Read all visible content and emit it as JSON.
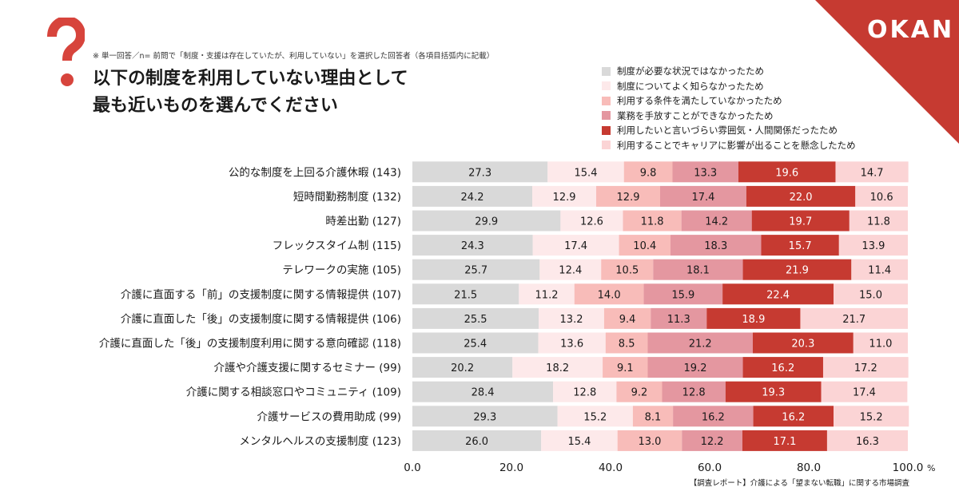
{
  "brand": {
    "logo": "OKAN",
    "corner_color": "#c63a31"
  },
  "survey_note": "※ 単一回答／n= 前問で「制度・支援は存在していたが、利用していない」を選択した回答者（各項目括弧内に記載）",
  "title_lines": [
    "以下の制度を利用していない理由として",
    "最も近いものを選んでください"
  ],
  "source": "【調査レポート】介護による「望まない転職」に関する市場調査",
  "chart_data": {
    "type": "bar",
    "orientation": "horizontal",
    "stacked": true,
    "xlim": [
      0,
      100
    ],
    "xticks": [
      "0.0",
      "20.0",
      "40.0",
      "60.0",
      "80.0",
      "100.0"
    ],
    "x_unit": "%",
    "categories": [
      "公的な制度を上回る介護休暇 (143)",
      "短時間勤務制度 (132)",
      "時差出勤 (127)",
      "フレックスタイム制 (115)",
      "テレワークの実施 (105)",
      "介護に直面する「前」の支援制度に関する情報提供 (107)",
      "介護に直面した「後」の支援制度に関する情報提供 (106)",
      "介護に直面した「後」の支援制度利用に関する意向確認 (118)",
      "介護や介護支援に関するセミナー (99)",
      "介護に関する相談窓口やコミュニティ (109)",
      "介護サービスの費用助成 (99)",
      "メンタルヘルスの支援制度 (123)"
    ],
    "series": [
      {
        "name": "制度が必要な状況ではなかったため",
        "color": "#d9d9d9",
        "label_color": "#1a1a1a",
        "values": [
          27.3,
          24.2,
          29.9,
          24.3,
          25.7,
          21.5,
          25.5,
          25.4,
          20.2,
          28.4,
          29.3,
          26.0
        ]
      },
      {
        "name": "制度についてよく知らなかったため",
        "color": "#fde9ea",
        "label_color": "#1a1a1a",
        "values": [
          15.4,
          12.9,
          12.6,
          17.4,
          12.4,
          11.2,
          13.2,
          13.6,
          18.2,
          12.8,
          15.2,
          15.4
        ]
      },
      {
        "name": "利用する条件を満たしていなかったため",
        "color": "#f8bcb9",
        "label_color": "#1a1a1a",
        "values": [
          9.8,
          12.9,
          11.8,
          10.4,
          10.5,
          14.0,
          9.4,
          8.5,
          9.1,
          9.2,
          8.1,
          13.0
        ]
      },
      {
        "name": "業務を手放すことができなかったため",
        "color": "#e497a0",
        "label_color": "#1a1a1a",
        "values": [
          13.3,
          17.4,
          14.2,
          18.3,
          18.1,
          15.9,
          11.3,
          21.2,
          19.2,
          12.8,
          16.2,
          12.2
        ]
      },
      {
        "name": "利用したいと言いづらい雰囲気・人間関係だったため",
        "color": "#c63a31",
        "label_color": "#ffffff",
        "values": [
          19.6,
          22.0,
          19.7,
          15.7,
          21.9,
          22.4,
          18.9,
          20.3,
          16.2,
          19.3,
          16.2,
          17.1
        ]
      },
      {
        "name": "利用することでキャリアに影響が出ることを懸念したため",
        "color": "#fbd4d5",
        "label_color": "#1a1a1a",
        "values": [
          14.7,
          10.6,
          11.8,
          13.9,
          11.4,
          15.0,
          21.7,
          11.0,
          17.2,
          17.4,
          15.2,
          16.3
        ]
      }
    ]
  }
}
